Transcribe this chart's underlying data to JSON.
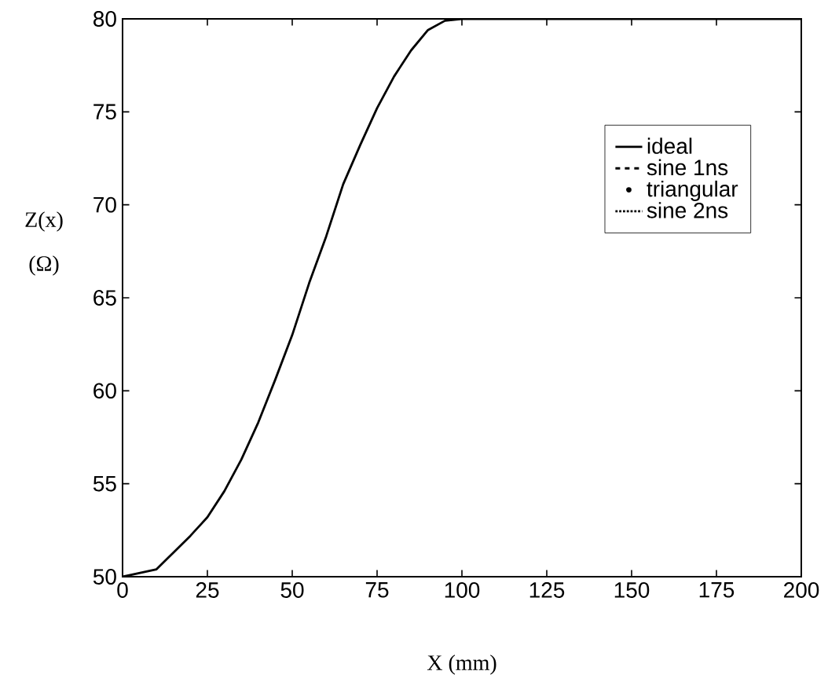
{
  "chart_data": {
    "type": "line",
    "xlabel": "X (mm)",
    "ylabel": "Z(x) (Ω)",
    "x": [
      0,
      10,
      20,
      25,
      30,
      35,
      40,
      45,
      50,
      55,
      60,
      65,
      70,
      75,
      80,
      85,
      90,
      95,
      100,
      125,
      150,
      175,
      200
    ],
    "series": [
      {
        "name": "ideal",
        "color": "#000000",
        "line_style": "solid",
        "marker": "none",
        "values": [
          50,
          50.4,
          52.2,
          53.2,
          54.6,
          56.3,
          58.3,
          60.6,
          63.0,
          65.8,
          68.3,
          71.1,
          73.2,
          75.2,
          76.9,
          78.3,
          79.4,
          79.9,
          80,
          80,
          80,
          80,
          80
        ]
      },
      {
        "name": "sine 1ns",
        "color": "#000000",
        "line_style": "dashed",
        "marker": "none",
        "values": [
          null,
          null,
          null,
          null,
          null,
          null,
          null,
          null,
          null,
          null,
          null,
          null,
          null,
          null,
          null,
          null,
          null,
          null,
          null,
          null,
          null,
          null,
          null
        ]
      },
      {
        "name": "triangular",
        "color": "#000000",
        "line_style": "none",
        "marker": "circle",
        "values": [
          null,
          null,
          null,
          null,
          null,
          null,
          null,
          null,
          null,
          null,
          null,
          null,
          null,
          null,
          null,
          null,
          null,
          null,
          null,
          null,
          null,
          null,
          null
        ]
      },
      {
        "name": "sine 2ns",
        "color": "#000000",
        "line_style": "dotted",
        "marker": "none",
        "values": [
          null,
          null,
          null,
          null,
          null,
          null,
          null,
          null,
          null,
          null,
          null,
          null,
          null,
          null,
          null,
          null,
          null,
          null,
          null,
          null,
          null,
          null,
          null
        ]
      }
    ],
    "xlim": [
      0,
      200
    ],
    "xticks": [
      0,
      25,
      50,
      75,
      100,
      125,
      150,
      175,
      200
    ],
    "ylim": [
      50,
      80
    ],
    "yticks": [
      50,
      55,
      60,
      65,
      70,
      75,
      80
    ],
    "grid": false,
    "legend": "top right"
  }
}
